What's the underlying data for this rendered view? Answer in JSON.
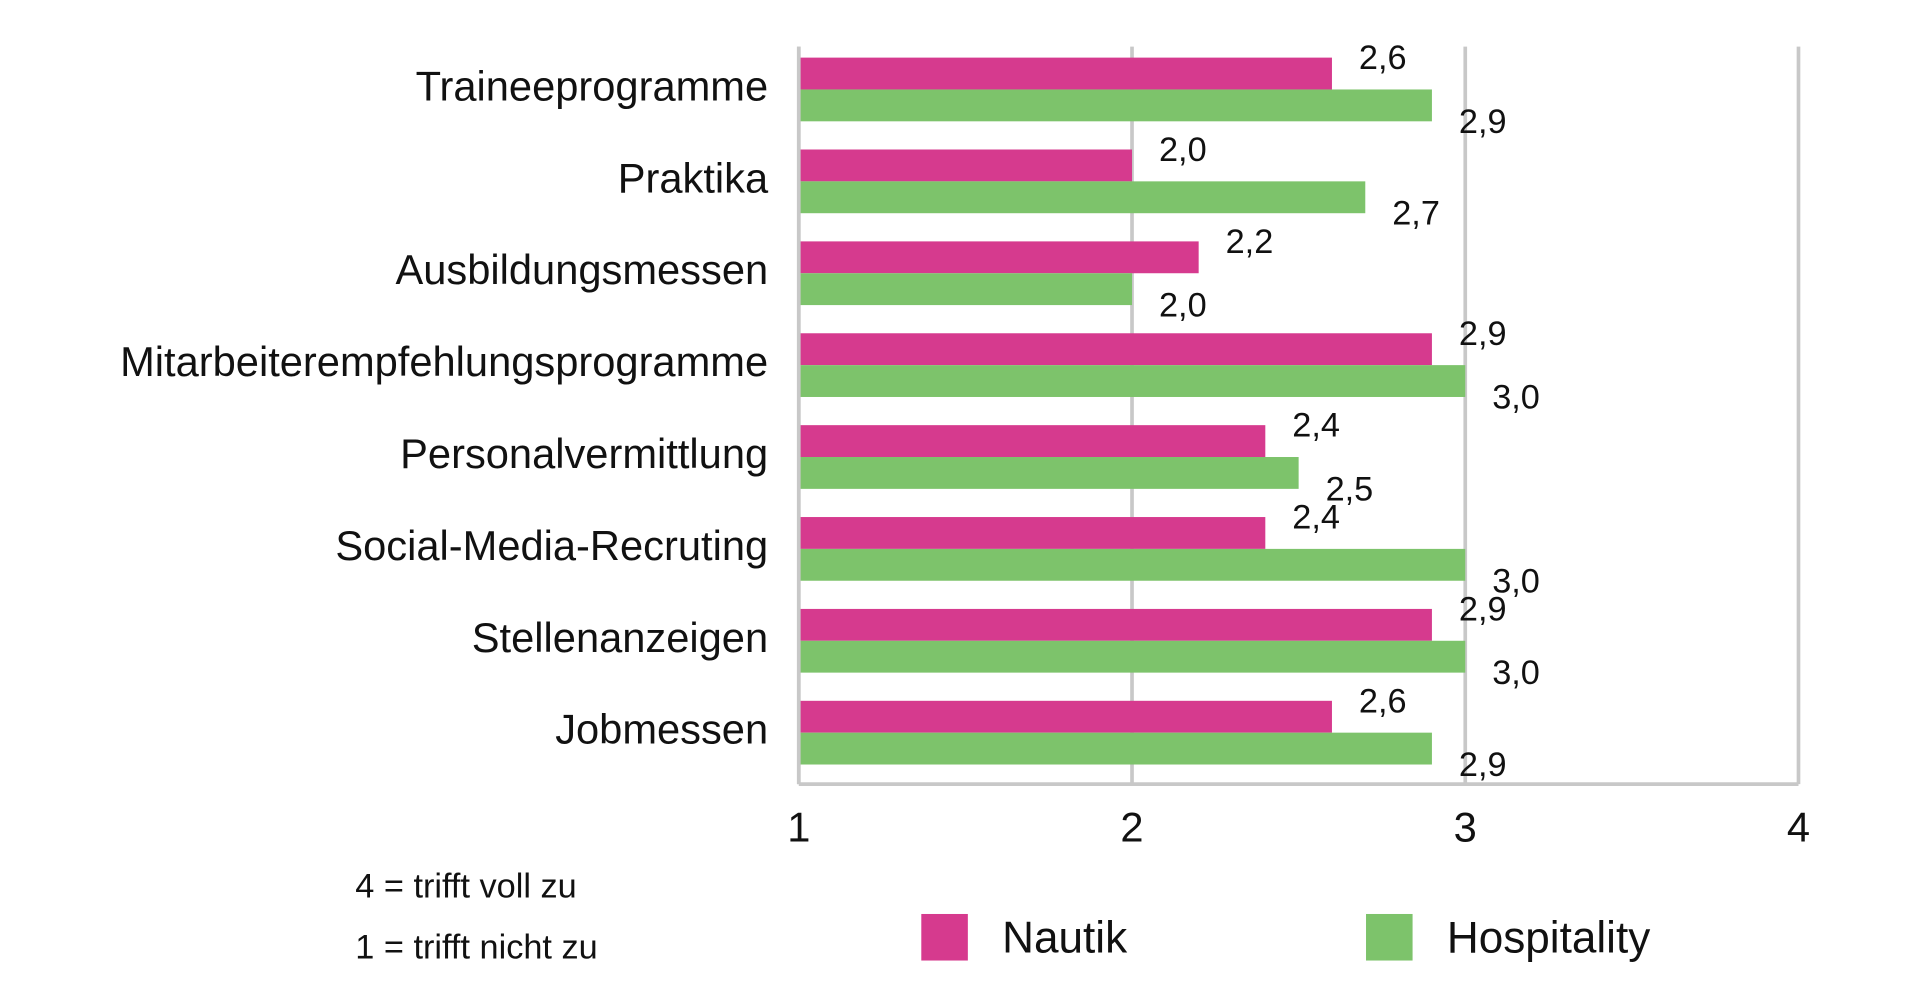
{
  "chart_data": {
    "type": "barh",
    "categories": [
      "Traineeprogramme",
      "Praktika",
      "Ausbildungsmessen",
      "Mitarbeiterempfehlungsprogramme",
      "Personalvermittlung",
      "Social-Media-Recruting",
      "Stellenanzeigen",
      "Jobmessen"
    ],
    "series": [
      {
        "name": "Nautik",
        "color": "#d63a8e",
        "values": [
          2.6,
          2.0,
          2.2,
          2.9,
          2.4,
          2.4,
          2.9,
          2.6
        ],
        "value_labels": [
          "2,6",
          "2,0",
          "2,2",
          "2,9",
          "2,4",
          "2,4",
          "2,9",
          "2,6"
        ]
      },
      {
        "name": "Hospitality",
        "color": "#7dc36b",
        "values": [
          2.9,
          2.7,
          2.0,
          3.0,
          2.5,
          3.0,
          3.0,
          2.9
        ],
        "value_labels": [
          "2,9",
          "2,7",
          "2,0",
          "3,0",
          "2,5",
          "3,0",
          "3,0",
          "2,9"
        ]
      }
    ],
    "xlim": [
      1,
      4
    ],
    "xticks": [
      1,
      2,
      3,
      4
    ],
    "grid": true,
    "legend": "bottom",
    "annotations": [
      "4 = trifft voll zu",
      "1 = trifft nicht zu"
    ]
  }
}
